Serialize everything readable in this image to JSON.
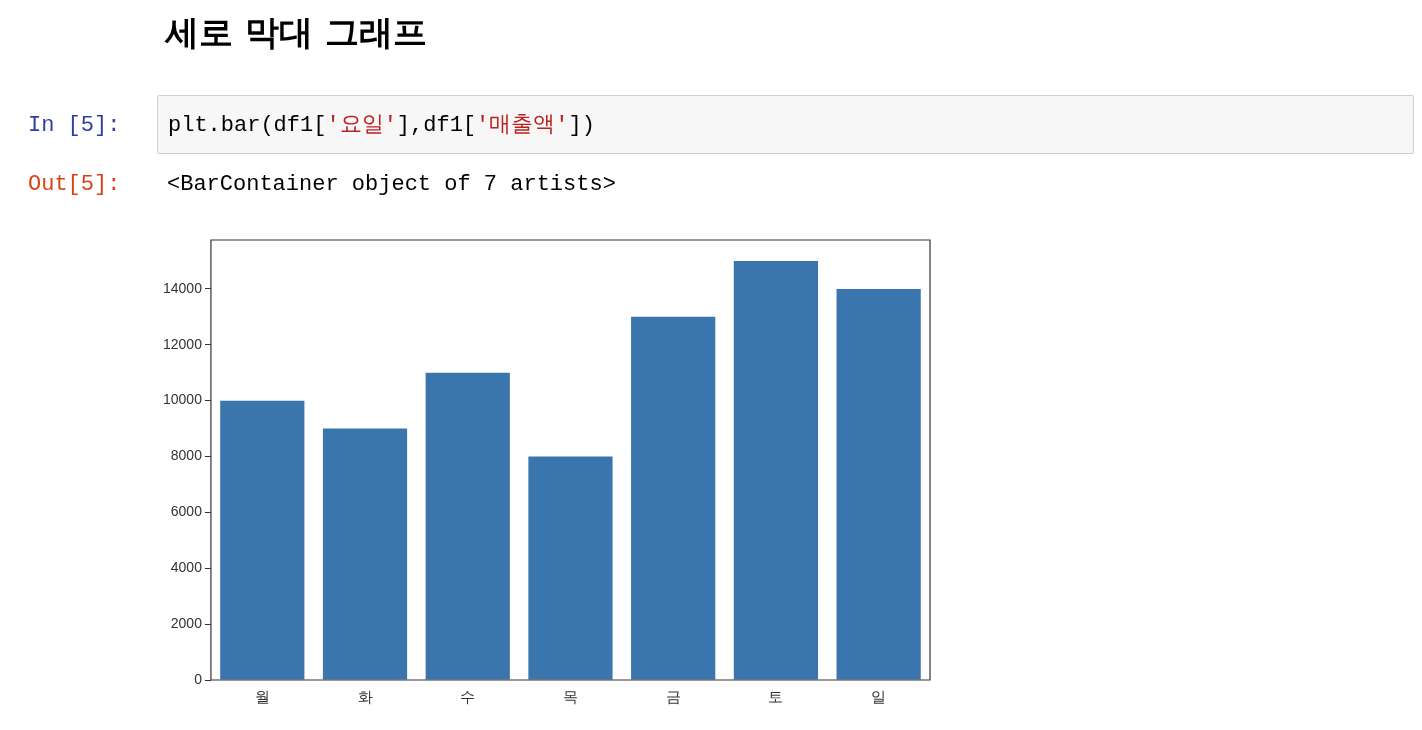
{
  "chart_data": {
    "type": "bar",
    "title": "세로 막대 그래프",
    "annotations": [
      "In [5]:",
      "plt.bar(df1['요일'],df1['매출액'])",
      "Out[5]:",
      "<BarContainer object of 7 artists>"
    ],
    "categories": [
      "월",
      "화",
      "수",
      "목",
      "금",
      "토",
      "일"
    ],
    "values": [
      10000,
      9000,
      11000,
      8000,
      13000,
      15000,
      14000
    ],
    "color": "#3a75ae",
    "ylim": [
      0,
      15750
    ],
    "yticks": [
      0,
      2000,
      4000,
      6000,
      8000,
      10000,
      12000,
      14000
    ],
    "grid": false,
    "legend": false
  }
}
